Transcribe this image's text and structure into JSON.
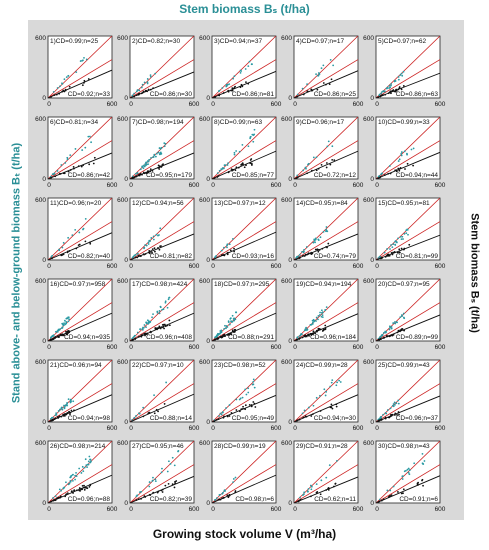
{
  "titles": {
    "top": "Stem biomass Bₛ (t/ha)",
    "bottom": "Growing stock volume V (m³/ha)",
    "left": "Stand above- and below-ground biomass Bₜ (t/ha)",
    "right": "Stem biomass Bₛ (t/ha)"
  },
  "colors": {
    "stand_series": "#2a9aa3",
    "stem_series": "#111111",
    "reference_lines": "#cc2222",
    "fit_line": "#111111",
    "panel_background": "#ffffff",
    "frame_background": "#d9d9d9"
  },
  "chart_data": {
    "type": "scatter",
    "layout": "small multiples 6 rows x 5 columns",
    "xlim": [
      0,
      600
    ],
    "ylim": [
      0,
      600
    ],
    "x_ticks": [
      "0",
      "600"
    ],
    "y_ticks": [
      "0",
      "600"
    ],
    "series_names": [
      "Stand above- and below-ground biomass",
      "Stem biomass"
    ],
    "panels": [
      {
        "id": "1)",
        "stand_label": "1)CD=0.99;n=25",
        "stem_label": "CD=0.92;n=33",
        "stand_slope": 1.05,
        "stem_slope": 0.45
      },
      {
        "id": "2)",
        "stand_label": "2)CD=0.82;n=30",
        "stem_label": "CD=0.86;n=30",
        "stand_slope": 1.0,
        "stem_slope": 0.42
      },
      {
        "id": "3)",
        "stand_label": "3)CD=0.94;n=37",
        "stem_label": "CD=0.86;n=81",
        "stand_slope": 0.95,
        "stem_slope": 0.43
      },
      {
        "id": "4)",
        "stand_label": "4)CD=0.97;n=17",
        "stem_label": "CD=0.86;n=25",
        "stand_slope": 1.0,
        "stem_slope": 0.44
      },
      {
        "id": "5)",
        "stand_label": "5)CD=0.97;n=62",
        "stem_label": "CD=0.86;n=63",
        "stand_slope": 0.9,
        "stem_slope": 0.4
      },
      {
        "id": "6)",
        "stand_label": "6)CD=0.81;n=34",
        "stem_label": "CD=0.86;n=42",
        "stand_slope": 1.0,
        "stem_slope": 0.42
      },
      {
        "id": "7)",
        "stand_label": "7)CD=0.98;n=194",
        "stem_label": "CD=0.95;n=179",
        "stand_slope": 0.95,
        "stem_slope": 0.42
      },
      {
        "id": "8)",
        "stand_label": "8)CD=0.99;n=63",
        "stem_label": "CD=0.85;n=77",
        "stand_slope": 1.05,
        "stem_slope": 0.45
      },
      {
        "id": "9)",
        "stand_label": "9)CD=0.96;n=17",
        "stem_label": "CD=0.72;n=12",
        "stand_slope": 1.0,
        "stem_slope": 0.45
      },
      {
        "id": "10)",
        "stand_label": "10)CD=0.99;n=33",
        "stem_label": "CD=0.94;n=44",
        "stand_slope": 0.95,
        "stem_slope": 0.43
      },
      {
        "id": "11)",
        "stand_label": "11)CD=0.96;n=20",
        "stem_label": "CD=0.82;n=40",
        "stand_slope": 1.0,
        "stem_slope": 0.44
      },
      {
        "id": "12)",
        "stand_label": "12)CD=0.94;n=56",
        "stem_label": "CD=0.81;n=82",
        "stand_slope": 0.95,
        "stem_slope": 0.42
      },
      {
        "id": "13)",
        "stand_label": "13)CD=0.97;n=12",
        "stem_label": "CD=0.93;n=16",
        "stand_slope": 1.0,
        "stem_slope": 0.45
      },
      {
        "id": "14)",
        "stand_label": "14)CD=0.95;n=84",
        "stem_label": "CD=0.74;n=79",
        "stand_slope": 0.95,
        "stem_slope": 0.42
      },
      {
        "id": "15)",
        "stand_label": "15)CD=0.95;n=81",
        "stem_label": "CD=0.81;n=99",
        "stand_slope": 0.9,
        "stem_slope": 0.4
      },
      {
        "id": "16)",
        "stand_label": "16)CD=0.97;n=958",
        "stem_label": "CD=0.94;n=935",
        "stand_slope": 1.1,
        "stem_slope": 0.45
      },
      {
        "id": "17)",
        "stand_label": "17)CD=0.98;n=424",
        "stem_label": "CD=0.96;n=408",
        "stand_slope": 1.05,
        "stem_slope": 0.45
      },
      {
        "id": "18)",
        "stand_label": "18)CD=0.97;n=295",
        "stem_label": "CD=0.88;n=291",
        "stand_slope": 1.1,
        "stem_slope": 0.45
      },
      {
        "id": "19)",
        "stand_label": "19)CD=0.94;n=194",
        "stem_label": "CD=0.96;n=184",
        "stand_slope": 1.0,
        "stem_slope": 0.44
      },
      {
        "id": "20)",
        "stand_label": "20)CD=0.97;n=95",
        "stem_label": "CD=0.89;n=99",
        "stand_slope": 0.95,
        "stem_slope": 0.42
      },
      {
        "id": "21)",
        "stand_label": "21)CD=0.96;n=94",
        "stem_label": "CD=0.94;n=98",
        "stand_slope": 1.0,
        "stem_slope": 0.44
      },
      {
        "id": "22)",
        "stand_label": "22)CD=0.97;n=10",
        "stem_label": "CD=0.88;n=14",
        "stand_slope": 1.0,
        "stem_slope": 0.45
      },
      {
        "id": "23)",
        "stand_label": "23)CD=0.98;n=52",
        "stem_label": "CD=0.95;n=49",
        "stand_slope": 0.95,
        "stem_slope": 0.43
      },
      {
        "id": "24)",
        "stand_label": "24)CD=0.99;n=28",
        "stem_label": "CD=0.94;n=30",
        "stand_slope": 1.0,
        "stem_slope": 0.44
      },
      {
        "id": "25)",
        "stand_label": "25)CD=0.99;n=43",
        "stem_label": "CD=0.96;n=37",
        "stand_slope": 0.95,
        "stem_slope": 0.42
      },
      {
        "id": "26)",
        "stand_label": "26)CD=0.98;n=214",
        "stem_label": "CD=0.96;n=88",
        "stand_slope": 1.05,
        "stem_slope": 0.45
      },
      {
        "id": "27)",
        "stand_label": "27)CD=0.95;n=46",
        "stem_label": "CD=0.82;n=39",
        "stand_slope": 1.0,
        "stem_slope": 0.43
      },
      {
        "id": "28)",
        "stand_label": "28)CD=0.99;n=19",
        "stem_label": "CD=0.98;n=6",
        "stand_slope": 1.0,
        "stem_slope": 0.45
      },
      {
        "id": "29)",
        "stand_label": "29)CD=0.91;n=28",
        "stem_label": "CD=0.62;n=11",
        "stand_slope": 0.95,
        "stem_slope": 0.42
      },
      {
        "id": "30)",
        "stand_label": "30)CD=0.98;n=43",
        "stem_label": "CD=0.91;n=6",
        "stand_slope": 1.0,
        "stem_slope": 0.44
      }
    ]
  }
}
